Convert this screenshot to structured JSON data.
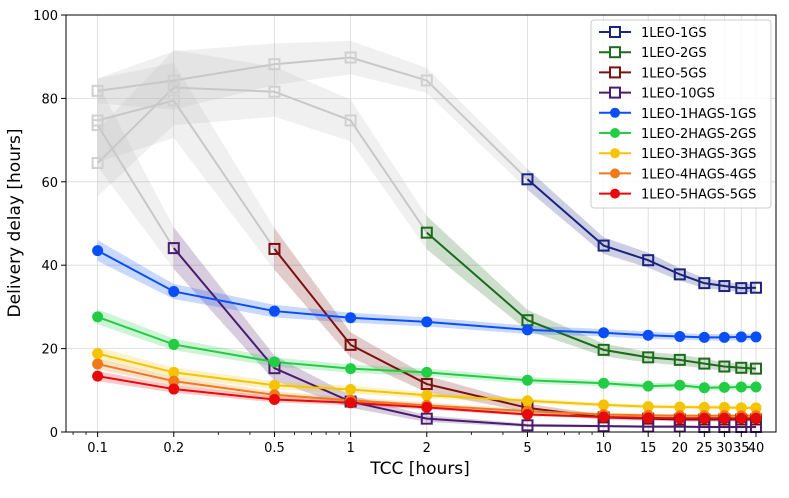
{
  "chart_data": {
    "type": "line",
    "title": "",
    "xlabel": "TCC [hours]",
    "ylabel": "Delivery delay [hours]",
    "x_scale": "log",
    "xlim": [
      0.075,
      48
    ],
    "ylim": [
      0,
      100
    ],
    "grid": true,
    "legend_position": "top-right",
    "x_ticks": [
      0.1,
      0.2,
      0.5,
      1,
      2,
      5,
      10,
      15,
      20,
      25,
      30,
      35,
      40
    ],
    "x_tick_labels": [
      "0.1",
      "0.2",
      "0.5",
      "1",
      "2",
      "5",
      "10",
      "15",
      "20",
      "25",
      "30",
      "35",
      "40"
    ],
    "y_ticks": [
      0,
      20,
      40,
      60,
      80,
      100
    ],
    "y_tick_labels": [
      "0",
      "20",
      "40",
      "60",
      "80",
      "100"
    ],
    "x": [
      0.1,
      0.2,
      0.5,
      1,
      2,
      5,
      10,
      15,
      20,
      25,
      30,
      35,
      40
    ],
    "series": [
      {
        "name": "1LEO-1GS",
        "color": "#1a237e",
        "marker": "square-open",
        "values": [
          81.8,
          84.3,
          88.2,
          89.8,
          84.3,
          60.6,
          44.7,
          41.2,
          37.8,
          35.7,
          35.0,
          34.5,
          34.6
        ],
        "band": [
          3,
          7,
          5,
          4,
          3,
          2.5,
          2,
          1.8,
          1.5,
          1.2,
          1,
          1,
          1
        ],
        "valid_from": 5
      },
      {
        "name": "1LEO-2GS",
        "color": "#1b6b1b",
        "marker": "square-open",
        "values": [
          64.5,
          82.6,
          81.6,
          74.7,
          47.8,
          26.8,
          19.7,
          17.9,
          17.3,
          16.4,
          15.7,
          15.4,
          15.2
        ],
        "band": [
          8,
          9,
          6,
          5,
          4,
          2.5,
          1.5,
          1.3,
          1.3,
          1.2,
          1,
          1,
          1
        ],
        "valid_from": 4
      },
      {
        "name": "1LEO-5GS",
        "color": "#7a1010",
        "marker": "square-open",
        "values": [
          74.7,
          79.5,
          43.9,
          20.9,
          11.5,
          5.8,
          3.5,
          3.2,
          3.0,
          3.0,
          3.0,
          3.0,
          3.0
        ],
        "band": [
          10,
          9,
          5,
          3,
          2,
          1,
          0.6,
          0.5,
          0.5,
          0.5,
          0.5,
          0.5,
          0.5
        ],
        "valid_from": 2
      },
      {
        "name": "1LEO-10GS",
        "color": "#4a1c6e",
        "marker": "square-open",
        "values": [
          73.6,
          44.1,
          15.3,
          7.3,
          3.2,
          1.6,
          1.4,
          1.3,
          1.3,
          1.2,
          1.2,
          1.2,
          1.2
        ],
        "band": [
          10,
          5,
          3,
          1.5,
          0.8,
          0.4,
          0.3,
          0.3,
          0.3,
          0.3,
          0.3,
          0.3,
          0.3
        ],
        "valid_from": 1
      },
      {
        "name": "1LEO-1HAGS-1GS",
        "color": "#0a4ef5",
        "marker": "circle",
        "values": [
          43.5,
          33.7,
          29.0,
          27.4,
          26.4,
          24.5,
          23.8,
          23.2,
          22.9,
          22.7,
          22.7,
          22.8,
          22.8
        ],
        "band": [
          2.5,
          1.8,
          1.5,
          1.2,
          1.1,
          1.0,
          0.9,
          0.9,
          0.8,
          0.8,
          0.8,
          0.8,
          0.8
        ],
        "valid_from": 0
      },
      {
        "name": "1LEO-2HAGS-2GS",
        "color": "#22cc44",
        "marker": "circle",
        "values": [
          27.6,
          21.0,
          16.8,
          15.2,
          14.3,
          12.4,
          11.7,
          11.0,
          11.2,
          10.6,
          10.7,
          10.8,
          10.8
        ],
        "band": [
          1.8,
          1.4,
          1.1,
          1.0,
          0.9,
          0.8,
          0.7,
          0.7,
          0.7,
          0.7,
          0.7,
          0.7,
          0.7
        ],
        "valid_from": 0
      },
      {
        "name": "1LEO-3HAGS-3GS",
        "color": "#f5c400",
        "marker": "circle",
        "values": [
          18.8,
          14.3,
          11.2,
          10.2,
          8.8,
          7.5,
          6.5,
          6.1,
          6.0,
          5.9,
          5.9,
          5.8,
          5.8
        ],
        "band": [
          1.5,
          1.2,
          1.0,
          0.9,
          0.8,
          0.6,
          0.5,
          0.5,
          0.5,
          0.5,
          0.5,
          0.5,
          0.5
        ],
        "valid_from": 0
      },
      {
        "name": "1LEO-4HAGS-4GS",
        "color": "#f07a1a",
        "marker": "circle",
        "values": [
          16.3,
          12.2,
          8.9,
          7.6,
          6.4,
          5.0,
          4.2,
          4.0,
          3.9,
          3.9,
          3.9,
          3.9,
          3.9
        ],
        "band": [
          1.3,
          1.0,
          0.8,
          0.7,
          0.6,
          0.5,
          0.4,
          0.4,
          0.4,
          0.4,
          0.4,
          0.4,
          0.4
        ],
        "valid_from": 0
      },
      {
        "name": "1LEO-5HAGS-5GS",
        "color": "#e80a0a",
        "marker": "circle",
        "values": [
          13.4,
          10.3,
          7.8,
          7.0,
          5.9,
          4.2,
          3.6,
          3.4,
          3.3,
          3.3,
          3.3,
          3.3,
          3.3
        ],
        "band": [
          1.2,
          0.9,
          0.7,
          0.6,
          0.5,
          0.4,
          0.3,
          0.3,
          0.3,
          0.3,
          0.3,
          0.3,
          0.3
        ],
        "valid_from": 0
      }
    ]
  }
}
